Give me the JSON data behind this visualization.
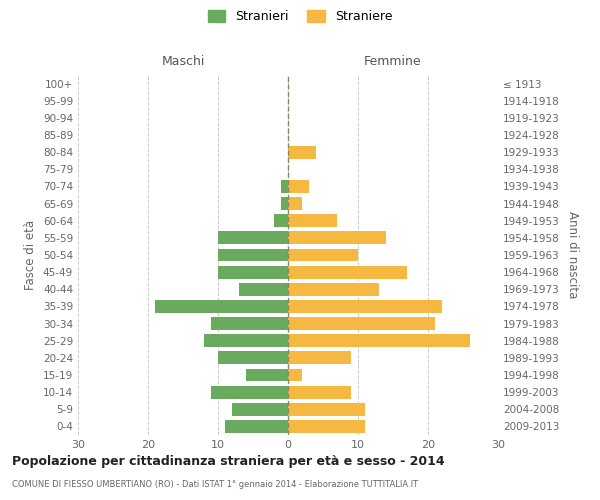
{
  "age_groups": [
    "100+",
    "95-99",
    "90-94",
    "85-89",
    "80-84",
    "75-79",
    "70-74",
    "65-69",
    "60-64",
    "55-59",
    "50-54",
    "45-49",
    "40-44",
    "35-39",
    "30-34",
    "25-29",
    "20-24",
    "15-19",
    "10-14",
    "5-9",
    "0-4"
  ],
  "birth_years": [
    "≤ 1913",
    "1914-1918",
    "1919-1923",
    "1924-1928",
    "1929-1933",
    "1934-1938",
    "1939-1943",
    "1944-1948",
    "1949-1953",
    "1954-1958",
    "1959-1963",
    "1964-1968",
    "1969-1973",
    "1974-1978",
    "1979-1983",
    "1984-1988",
    "1989-1993",
    "1994-1998",
    "1999-2003",
    "2004-2008",
    "2009-2013"
  ],
  "maschi": [
    0,
    0,
    0,
    0,
    0,
    0,
    1,
    1,
    2,
    10,
    10,
    10,
    7,
    19,
    11,
    12,
    10,
    6,
    11,
    8,
    9
  ],
  "femmine": [
    0,
    0,
    0,
    0,
    4,
    0,
    3,
    2,
    7,
    14,
    10,
    17,
    13,
    22,
    21,
    26,
    9,
    2,
    9,
    11,
    11
  ],
  "maschi_color": "#6aaa5e",
  "femmine_color": "#f5b942",
  "background_color": "#ffffff",
  "grid_color": "#cccccc",
  "dashed_line_color": "#888866",
  "title": "Popolazione per cittadinanza straniera per età e sesso - 2014",
  "subtitle": "COMUNE DI FIESSO UMBERTIANO (RO) - Dati ISTAT 1° gennaio 2014 - Elaborazione TUTTITALIA.IT",
  "ylabel_left": "Fasce di età",
  "ylabel_right": "Anni di nascita",
  "header_maschi": "Maschi",
  "header_femmine": "Femmine",
  "legend_maschi": "Stranieri",
  "legend_femmine": "Straniere",
  "xlim": 30,
  "bar_height": 0.75
}
